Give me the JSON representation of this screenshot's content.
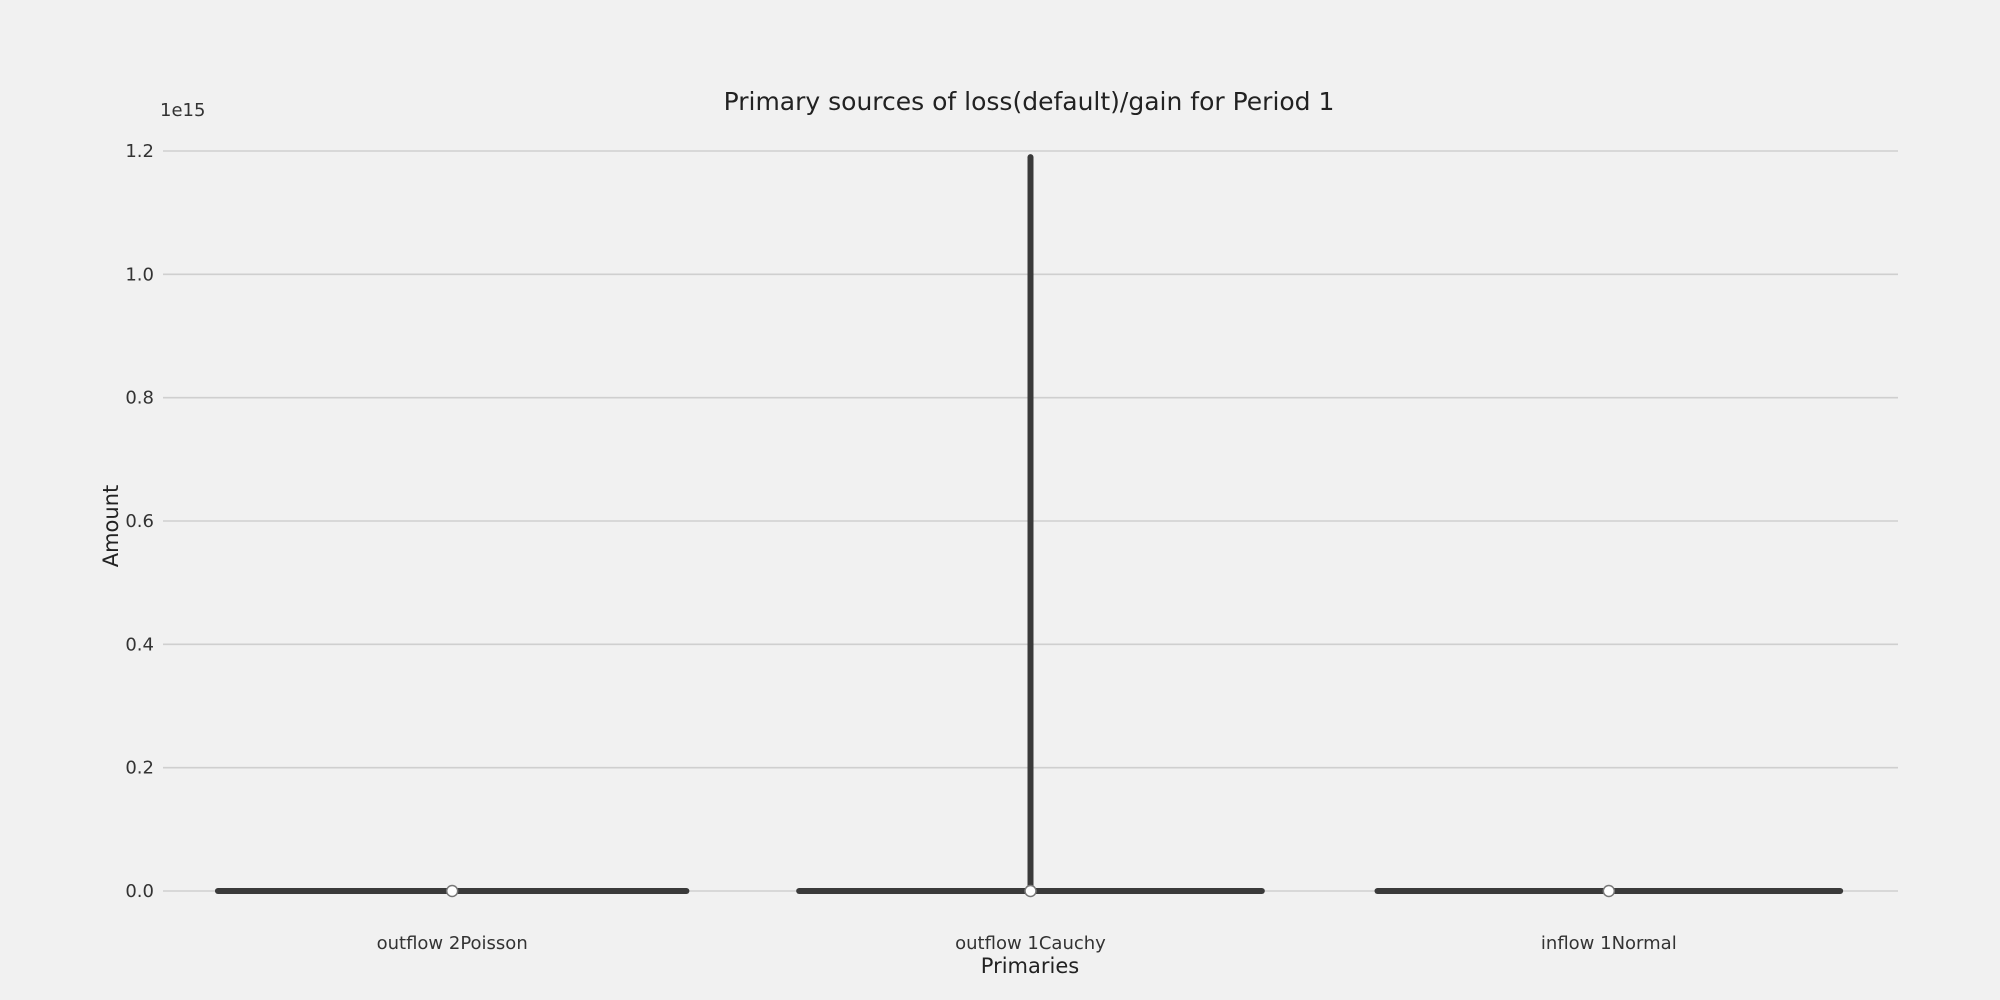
{
  "chart_data": {
    "type": "violin",
    "title": "Primary sources of loss(default)/gain for Period 1",
    "xlabel": "Primaries",
    "ylabel": "Amount",
    "y_offset_label": "1e15",
    "ylim": [
      0,
      1.2
    ],
    "y_ticks": [
      0.0,
      0.2,
      0.4,
      0.6,
      0.8,
      1.0,
      1.2
    ],
    "y_tick_labels": [
      "0.0",
      "0.2",
      "0.4",
      "0.6",
      "0.8",
      "1.0",
      "1.2"
    ],
    "grid": true,
    "categories": [
      "outflow 2Poisson",
      "outflow 1Cauchy",
      "inflow 1Normal"
    ],
    "series": [
      {
        "category": "outflow 2Poisson",
        "min": 0.0,
        "max": 0.0,
        "median": 0.0,
        "width": 0.81
      },
      {
        "category": "outflow 1Cauchy",
        "min": 0.0,
        "max": 1.19,
        "median": 0.0,
        "width": 0.8
      },
      {
        "category": "inflow 1Normal",
        "min": 0.0,
        "max": 0.0,
        "median": 0.0,
        "width": 0.8
      }
    ],
    "colors": {
      "violin": "#3a3a3a",
      "median": "#ffffff",
      "grid": "#cfcfcf",
      "background": "#f1f1f1"
    }
  }
}
